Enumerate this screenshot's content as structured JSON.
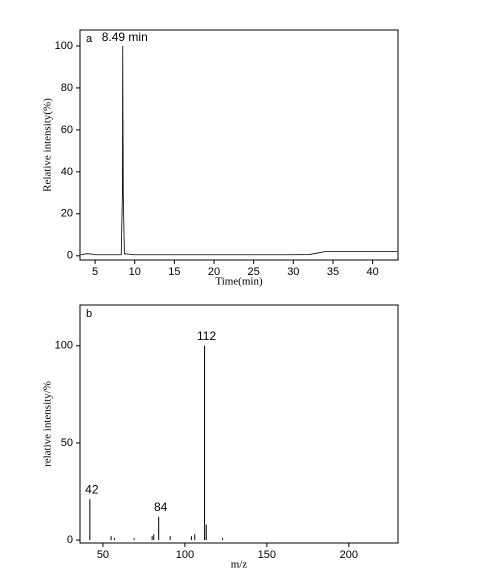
{
  "chart_data": [
    {
      "type": "line",
      "panel": "a",
      "annotation": "8.49 min",
      "y_label": "Relative intensity(%)",
      "x_label": "Time(min)",
      "color": "#000000",
      "x": [
        3.2,
        4.0,
        4.6,
        5.0,
        8.3,
        8.45,
        8.49,
        8.55,
        8.7,
        10,
        15,
        20,
        25,
        30,
        32,
        33,
        34,
        36,
        40,
        43.1
      ],
      "values": [
        0.5,
        1.0,
        0.8,
        0.5,
        0.5,
        30,
        100,
        30,
        1.0,
        0.5,
        0.5,
        0.5,
        0.5,
        0.5,
        0.6,
        1.3,
        2.0,
        2.0,
        2.0,
        2.0
      ],
      "xlim": [
        3.1,
        43.2
      ],
      "ylim": [
        -2,
        107.6
      ],
      "xticks": [
        5,
        10,
        15,
        20,
        25,
        30,
        35,
        40
      ],
      "yticks": [
        0,
        20,
        40,
        60,
        80,
        100
      ]
    },
    {
      "type": "stem",
      "panel": "b",
      "y_label": "relative intensity/%",
      "x_label": "m/z",
      "color": "#000000",
      "x": [
        42,
        55,
        57,
        69,
        80,
        81,
        84,
        91,
        104,
        106,
        112,
        113,
        123
      ],
      "values": [
        21,
        2,
        1,
        1,
        2,
        3,
        12,
        2,
        2,
        3,
        100,
        8,
        1
      ],
      "peak_labels": [
        "42",
        null,
        null,
        null,
        null,
        null,
        "84",
        null,
        null,
        null,
        "112",
        null,
        null
      ],
      "xlim": [
        36,
        230
      ],
      "ylim": [
        -1.5,
        121
      ],
      "xticks": [
        50,
        100,
        150,
        200
      ],
      "yticks": [
        0,
        50,
        100
      ]
    }
  ]
}
